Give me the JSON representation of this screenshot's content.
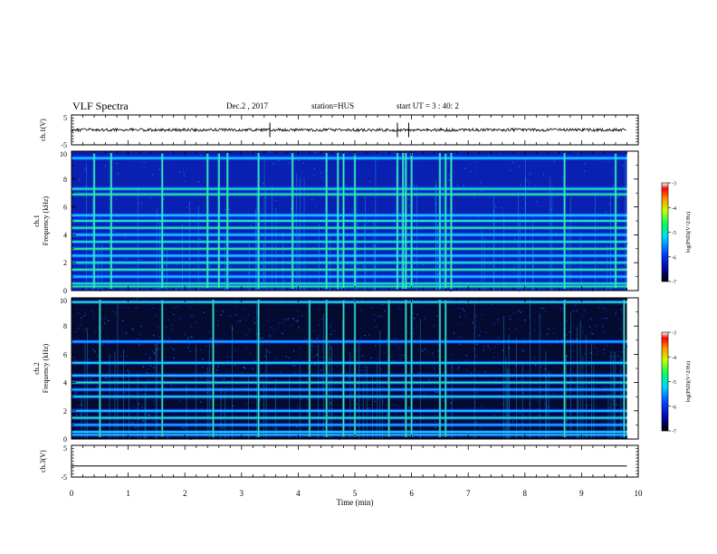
{
  "header": {
    "title": "VLF Spectra",
    "date": "Dec.2 , 2017",
    "station": "station=HUS",
    "start": "start UT = 3 : 40: 2"
  },
  "chart_data": [
    {
      "type": "line",
      "panel": "waveform-ch1",
      "ylabel": "ch.1(V)",
      "ylim": [
        -5,
        5
      ],
      "yticks": [
        "5",
        "-5"
      ],
      "xlim": [
        0,
        10
      ],
      "series": [
        {
          "x": [
            0,
            9.8
          ],
          "y": [
            0,
            0
          ]
        }
      ],
      "spikes_min": [
        3.5,
        5.75,
        5.95
      ]
    },
    {
      "type": "heatmap",
      "panel": "spectrogram-ch1",
      "ylabel_top": "ch.1",
      "ylabel": "Frequency (kHz)",
      "ylim": [
        0,
        10
      ],
      "yticks": [
        "0",
        "2",
        "4",
        "6",
        "8",
        "10"
      ],
      "xlim": [
        0,
        9.8
      ],
      "band_frequencies_khz": [
        0.3,
        0.5,
        1.0,
        1.5,
        2.0,
        2.5,
        3.0,
        3.5,
        4.0,
        4.5,
        5.0,
        5.4,
        6.9,
        7.3,
        9.5
      ],
      "bursts_min": [
        0.4,
        0.7,
        1.6,
        2.4,
        2.6,
        2.75,
        3.3,
        3.9,
        4.5,
        4.7,
        4.8,
        5.0,
        5.75,
        5.85,
        5.9,
        6.0,
        6.5,
        6.6,
        6.7,
        8.7,
        9.6
      ],
      "colorbar": {
        "label": "log(PSD)(V^2/Hz)",
        "range": [
          -7,
          -3
        ],
        "ticks": [
          "-3",
          "-4",
          "-5",
          "-6",
          "-7"
        ]
      }
    },
    {
      "type": "heatmap",
      "panel": "spectrogram-ch2",
      "ylabel_top": "ch.2",
      "ylabel": "Frequency (kHz)",
      "ylim": [
        0,
        10
      ],
      "yticks": [
        "0",
        "2",
        "4",
        "6",
        "8",
        "10"
      ],
      "xlim": [
        0,
        9.8
      ],
      "band_frequencies_khz": [
        0.3,
        0.5,
        1.0,
        1.5,
        2.0,
        3.0,
        3.5,
        4.0,
        4.5,
        5.4,
        6.9,
        9.7
      ],
      "bursts_min": [
        0.5,
        1.6,
        2.5,
        3.3,
        4.2,
        4.5,
        4.8,
        5.0,
        5.6,
        5.9,
        6.0,
        6.5,
        6.6,
        8.7,
        9.75
      ],
      "colorbar": {
        "label": "log(PSD)(V^2/Hz)",
        "range": [
          -7,
          -3
        ],
        "ticks": [
          "-3",
          "-4",
          "-5",
          "-6",
          "-7"
        ]
      }
    },
    {
      "type": "line",
      "panel": "waveform-ch3",
      "ylabel": "ch.3(V)",
      "ylim": [
        -5,
        5
      ],
      "yticks": [
        "5",
        "-5"
      ],
      "xlim": [
        0,
        10
      ],
      "series": [
        {
          "x": [
            0,
            9.8
          ],
          "y": [
            -1.5,
            -1.5
          ]
        }
      ]
    }
  ],
  "x_axis": {
    "label": "Time (min)",
    "range": [
      0,
      10
    ],
    "ticks": [
      "0",
      "1",
      "2",
      "3",
      "4",
      "5",
      "6",
      "7",
      "8",
      "9",
      "10"
    ]
  }
}
